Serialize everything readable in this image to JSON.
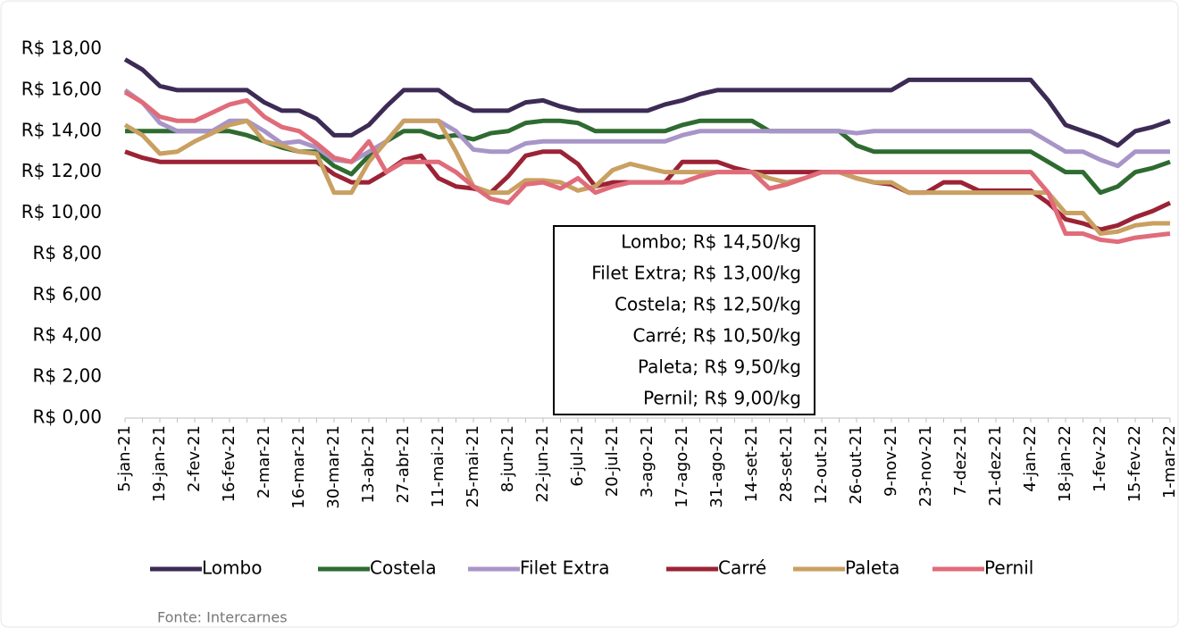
{
  "chart_data": {
    "type": "line",
    "categories": [
      "5-jan-21",
      null,
      "19-jan-21",
      null,
      "2-fev-21",
      null,
      "16-fev-21",
      null,
      "2-mar-21",
      null,
      "16-mar-21",
      null,
      "30-mar-21",
      null,
      "13-abr-21",
      null,
      "27-abr-21",
      null,
      "11-mai-21",
      null,
      "25-mai-21",
      null,
      "8-jun-21",
      null,
      "22-jun-21",
      null,
      "6-jul-21",
      null,
      "20-jul-21",
      null,
      "3-ago-21",
      null,
      "17-ago-21",
      null,
      "31-ago-21",
      null,
      "14-set-21",
      null,
      "28-set-21",
      null,
      "12-out-21",
      null,
      "26-out-21",
      null,
      "9-nov-21",
      null,
      "23-nov-21",
      null,
      "7-dez-21",
      null,
      "21-dez-21",
      null,
      "4-jan-22",
      null,
      "18-jan-22",
      null,
      "1-fev-22",
      null,
      "15-fev-22",
      null,
      "1-mar-22"
    ],
    "series": [
      {
        "name": "Lombo",
        "color": "#3d2b56",
        "values": [
          17.5,
          17.0,
          16.2,
          16.0,
          16.0,
          16.0,
          16.0,
          16.0,
          15.4,
          15.0,
          15.0,
          14.6,
          13.8,
          13.8,
          14.3,
          15.2,
          16.0,
          16.0,
          16.0,
          15.4,
          15.0,
          15.0,
          15.0,
          15.4,
          15.5,
          15.2,
          15.0,
          15.0,
          15.0,
          15.0,
          15.0,
          15.3,
          15.5,
          15.8,
          16.0,
          16.0,
          16.0,
          16.0,
          16.0,
          16.0,
          16.0,
          16.0,
          16.0,
          16.0,
          16.0,
          16.5,
          16.5,
          16.5,
          16.5,
          16.5,
          16.5,
          16.5,
          16.5,
          15.5,
          14.3,
          14.0,
          13.7,
          13.3,
          14.0,
          14.2,
          14.5
        ]
      },
      {
        "name": "Costela",
        "color": "#2e6b30",
        "values": [
          14.0,
          14.0,
          14.0,
          14.0,
          14.0,
          14.0,
          14.0,
          13.8,
          13.5,
          13.2,
          13.0,
          13.0,
          12.3,
          11.9,
          12.8,
          13.5,
          14.0,
          14.0,
          13.7,
          13.8,
          13.6,
          13.9,
          14.0,
          14.4,
          14.5,
          14.5,
          14.4,
          14.0,
          14.0,
          14.0,
          14.0,
          14.0,
          14.3,
          14.5,
          14.5,
          14.5,
          14.5,
          14.0,
          14.0,
          14.0,
          14.0,
          14.0,
          13.3,
          13.0,
          13.0,
          13.0,
          13.0,
          13.0,
          13.0,
          13.0,
          13.0,
          13.0,
          13.0,
          12.5,
          12.0,
          12.0,
          11.0,
          11.3,
          12.0,
          12.2,
          12.5
        ]
      },
      {
        "name": "Filet Extra",
        "color": "#a895c8",
        "values": [
          16.0,
          15.4,
          14.4,
          14.0,
          14.0,
          14.0,
          14.5,
          14.5,
          14.0,
          13.4,
          13.5,
          13.2,
          12.6,
          12.5,
          13.0,
          13.5,
          14.5,
          14.5,
          14.5,
          14.0,
          13.1,
          13.0,
          13.0,
          13.4,
          13.5,
          13.5,
          13.5,
          13.5,
          13.5,
          13.5,
          13.5,
          13.5,
          13.8,
          14.0,
          14.0,
          14.0,
          14.0,
          14.0,
          14.0,
          14.0,
          14.0,
          14.0,
          13.9,
          14.0,
          14.0,
          14.0,
          14.0,
          14.0,
          14.0,
          14.0,
          14.0,
          14.0,
          14.0,
          13.5,
          13.0,
          13.0,
          12.6,
          12.3,
          13.0,
          13.0,
          13.0
        ]
      },
      {
        "name": "Carré",
        "color": "#9b2335",
        "values": [
          13.0,
          12.7,
          12.5,
          12.5,
          12.5,
          12.5,
          12.5,
          12.5,
          12.5,
          12.5,
          12.5,
          12.5,
          11.9,
          11.5,
          11.5,
          12.0,
          12.6,
          12.8,
          11.7,
          11.3,
          11.2,
          11.0,
          11.8,
          12.8,
          13.0,
          13.0,
          12.4,
          11.3,
          11.5,
          11.5,
          11.5,
          11.5,
          12.5,
          12.5,
          12.5,
          12.2,
          12.0,
          12.0,
          12.0,
          12.0,
          12.0,
          12.0,
          11.7,
          11.5,
          11.4,
          11.0,
          11.0,
          11.5,
          11.5,
          11.1,
          11.1,
          11.1,
          11.1,
          10.5,
          9.7,
          9.5,
          9.2,
          9.4,
          9.8,
          10.1,
          10.5
        ]
      },
      {
        "name": "Paleta",
        "color": "#c9a062",
        "values": [
          14.3,
          13.8,
          12.9,
          13.0,
          13.5,
          13.9,
          14.3,
          14.5,
          13.5,
          13.3,
          13.0,
          12.9,
          11.0,
          11.0,
          12.5,
          13.5,
          14.5,
          14.5,
          14.5,
          13.0,
          11.3,
          11.0,
          11.0,
          11.6,
          11.6,
          11.5,
          11.1,
          11.3,
          12.1,
          12.4,
          12.2,
          12.0,
          12.0,
          12.0,
          12.0,
          12.0,
          12.0,
          11.7,
          11.5,
          11.7,
          12.0,
          12.0,
          11.7,
          11.5,
          11.5,
          11.0,
          11.0,
          11.0,
          11.0,
          11.0,
          11.0,
          11.0,
          11.0,
          11.0,
          10.0,
          10.0,
          9.0,
          9.1,
          9.4,
          9.5,
          9.5
        ]
      },
      {
        "name": "Pernil",
        "color": "#e06c7a",
        "values": [
          15.9,
          15.4,
          14.7,
          14.5,
          14.5,
          14.9,
          15.3,
          15.5,
          14.7,
          14.2,
          14.0,
          13.4,
          12.7,
          12.5,
          13.5,
          12.0,
          12.5,
          12.5,
          12.5,
          12.0,
          11.3,
          10.7,
          10.5,
          11.4,
          11.5,
          11.2,
          11.7,
          11.0,
          11.3,
          11.5,
          11.5,
          11.5,
          11.5,
          11.8,
          12.0,
          12.0,
          12.0,
          11.2,
          11.4,
          11.7,
          12.0,
          12.0,
          12.0,
          12.0,
          12.0,
          12.0,
          12.0,
          12.0,
          12.0,
          12.0,
          12.0,
          12.0,
          12.0,
          11.0,
          9.0,
          9.0,
          8.7,
          8.6,
          8.8,
          8.9,
          9.0
        ]
      }
    ],
    "ylim": [
      0,
      18
    ],
    "yticks": [
      {
        "value": 0,
        "label": "R$ 0,00"
      },
      {
        "value": 2,
        "label": "R$ 2,00"
      },
      {
        "value": 4,
        "label": "R$ 4,00"
      },
      {
        "value": 6,
        "label": "R$ 6,00"
      },
      {
        "value": 8,
        "label": "R$ 8,00"
      },
      {
        "value": 10,
        "label": "R$ 10,00"
      },
      {
        "value": 12,
        "label": "R$ 12,00"
      },
      {
        "value": 14,
        "label": "R$ 14,00"
      },
      {
        "value": 16,
        "label": "R$ 16,00"
      },
      {
        "value": 18,
        "label": "R$ 18,00"
      }
    ],
    "grid": false,
    "legend": "bottom",
    "annotations": [
      "Lombo; R$ 14,50/kg",
      "Filet Extra; R$ 13,00/kg",
      "Costela; R$ 12,50/kg",
      "Carré; R$ 10,50/kg",
      "Paleta; R$ 9,50/kg",
      "Pernil; R$ 9,00/kg"
    ],
    "source": "Fonte: Intercarnes"
  }
}
